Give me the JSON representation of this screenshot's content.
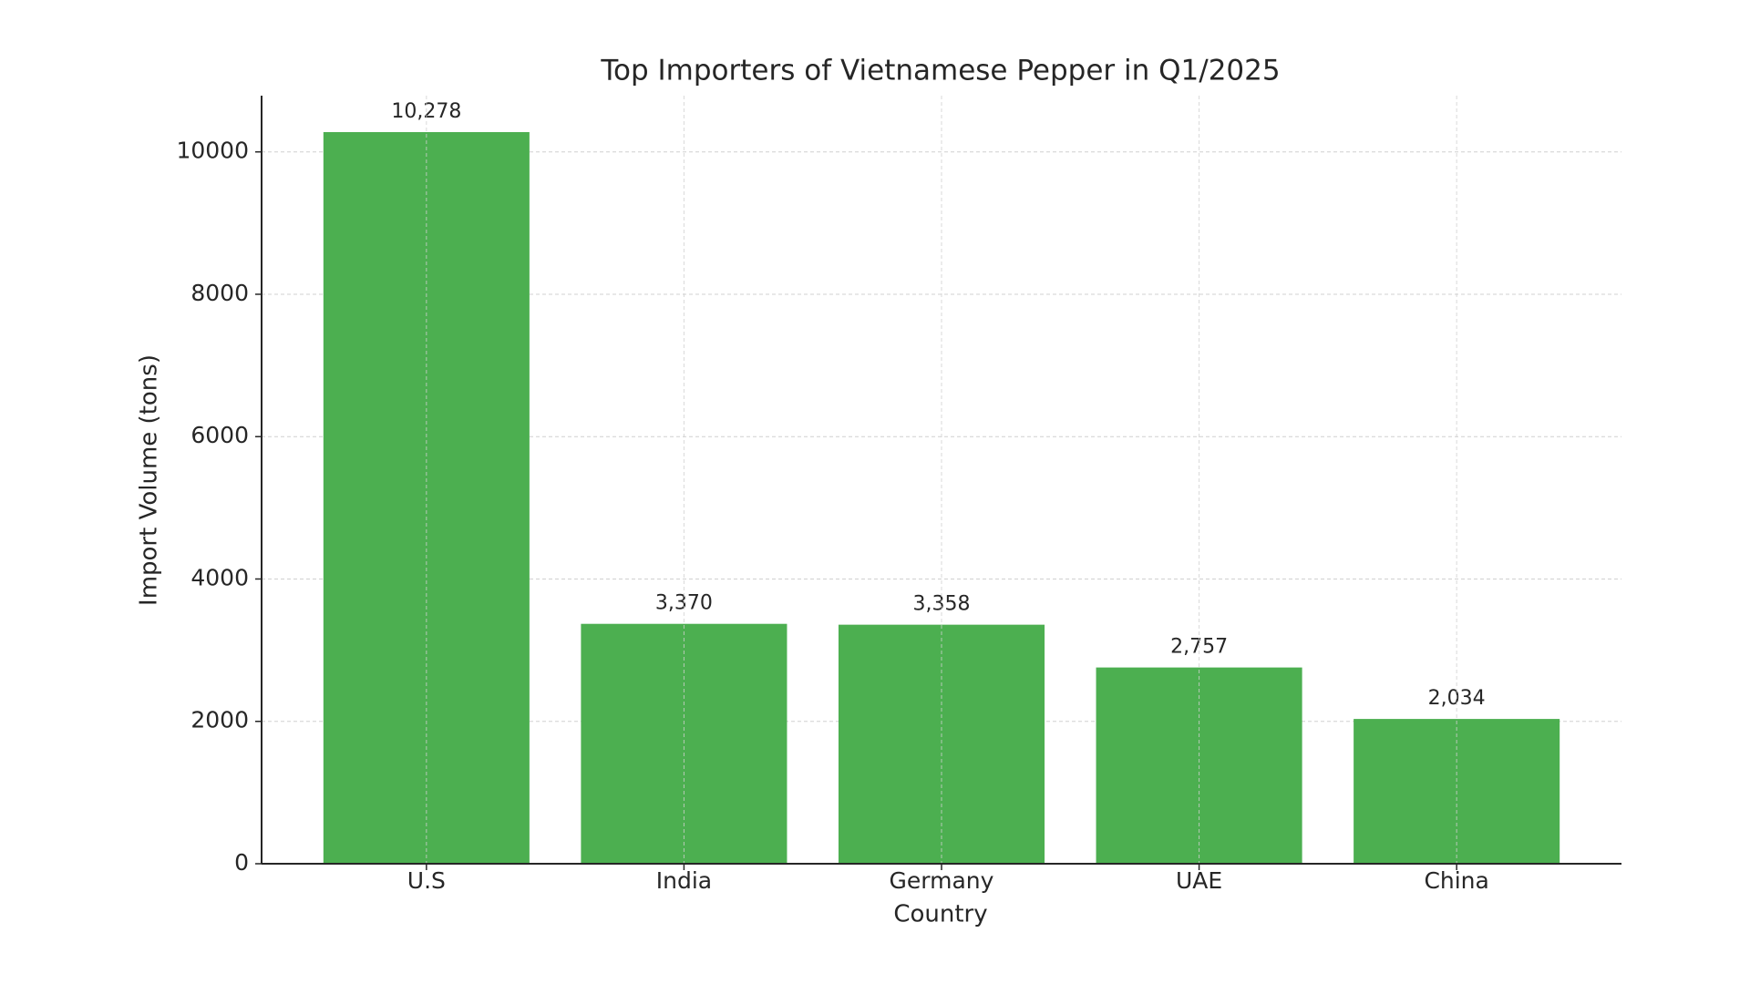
{
  "chart_data": {
    "type": "bar",
    "title": "Top Importers of Vietnamese Pepper in Q1/2025",
    "x_label": "Country",
    "y_label": "Import Volume (tons)",
    "categories": [
      "U.S",
      "India",
      "Germany",
      "UAE",
      "China"
    ],
    "values": [
      10278,
      3370,
      3358,
      2757,
      2034
    ],
    "value_labels": [
      "10,278",
      "3,370",
      "3,358",
      "2,757",
      "2,034"
    ],
    "color": "#4caf50",
    "ylim": [
      0,
      10790
    ],
    "yticks": [
      0,
      2000,
      4000,
      6000,
      8000,
      10000
    ],
    "grid": true
  }
}
